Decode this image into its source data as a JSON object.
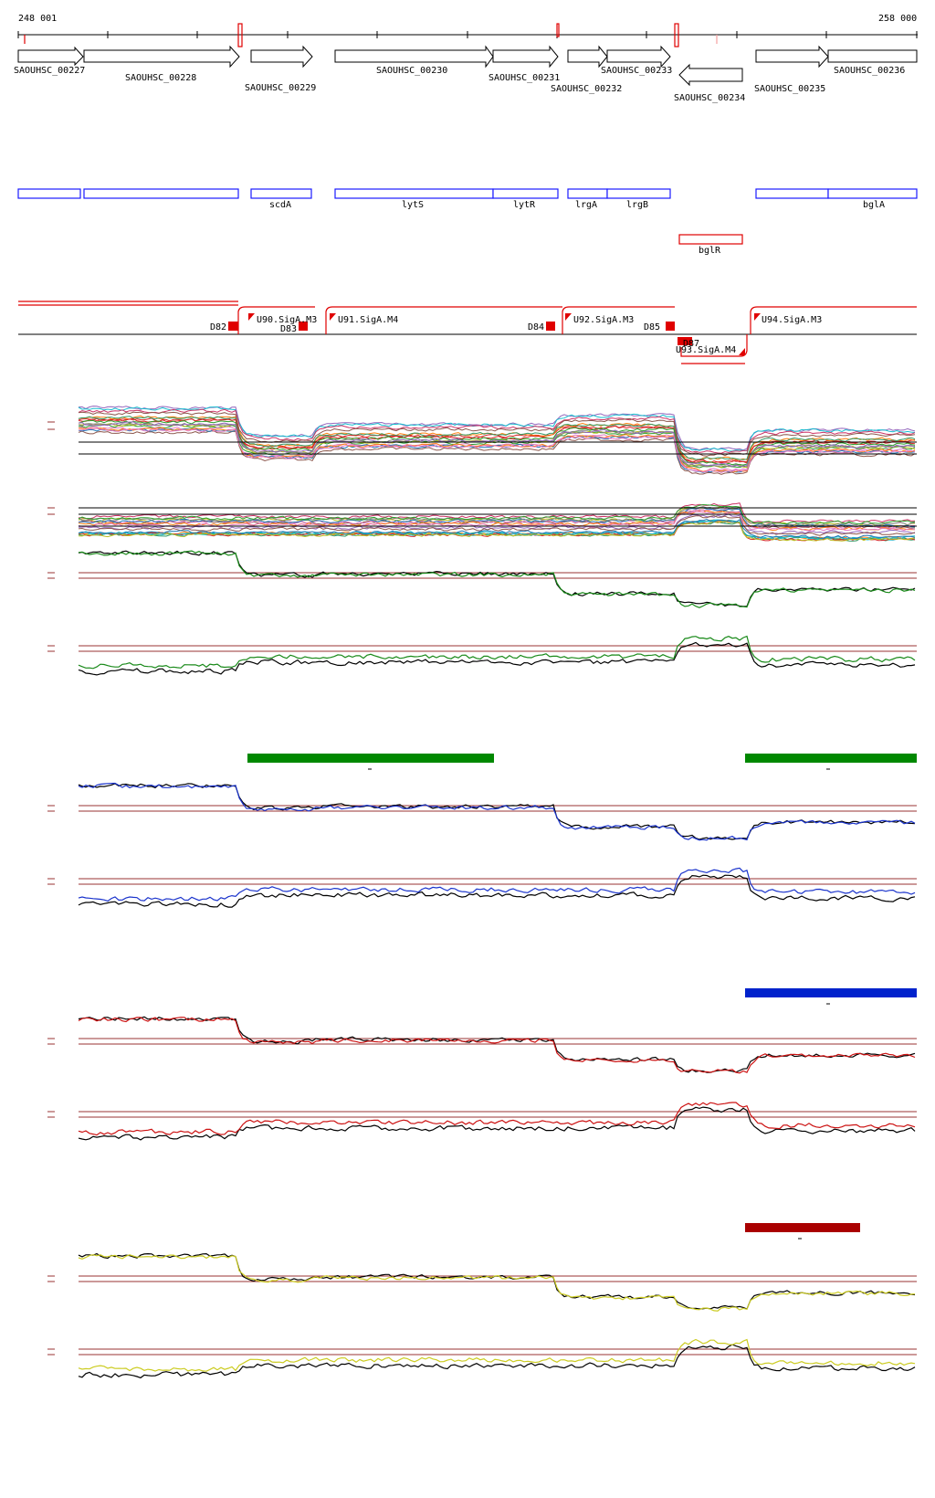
{
  "coordinates": {
    "start": "248 001",
    "end": "258 000"
  },
  "locus_tags": [
    "SAOUHSC_00227",
    "SAOUHSC_00228",
    "SAOUHSC_00229",
    "SAOUHSC_00230",
    "SAOUHSC_00231",
    "SAOUHSC_00232",
    "SAOUHSC_00233",
    "SAOUHSC_00234",
    "SAOUHSC_00235",
    "SAOUHSC_00236"
  ],
  "gene_names": [
    "scdA",
    "lytS",
    "lytR",
    "lrgA",
    "lrgB",
    "bglA",
    "bglR"
  ],
  "features": [
    "D82",
    "U90.SigA.M3",
    "D83",
    "U91.SigA.M4",
    "D84",
    "U92.SigA.M3",
    "D85",
    "D87",
    "U93.SigA.M4",
    "U94.SigA.M3"
  ],
  "condition_markers": [
    {
      "color": "#008800"
    },
    {
      "color": "#0022cc"
    },
    {
      "color": "#aa0000"
    }
  ],
  "colors": {
    "gene_box": "#1a1aff",
    "promoter": "#e00000",
    "threshold": "#993333",
    "green": "#1a8a1a",
    "blue": "#1a33cc",
    "red": "#cc1111",
    "yellow": "#cccc22"
  }
}
